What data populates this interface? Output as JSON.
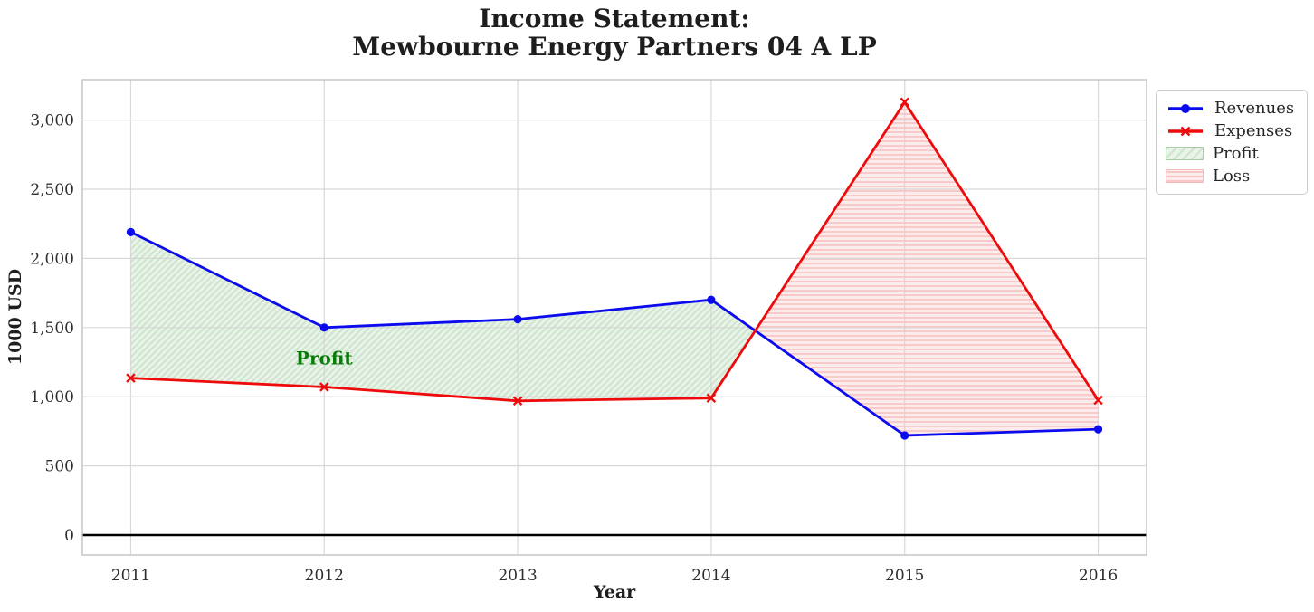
{
  "title": {
    "line1": "Income Statement:",
    "line2": "Mewbourne Energy Partners 04 A LP"
  },
  "axes": {
    "xlabel": "Year",
    "ylabel": "1000 USD"
  },
  "legend": {
    "position": "outside-top-right",
    "items": [
      {
        "label": "Revenues",
        "swatch": "blue-line-circle-marker"
      },
      {
        "label": "Expenses",
        "swatch": "red-line-x-marker"
      },
      {
        "label": "Profit",
        "swatch": "green-diagonal-hatch-patch"
      },
      {
        "label": "Loss",
        "swatch": "pink-horizontal-hatch-patch"
      }
    ]
  },
  "colors": {
    "grid": "#d2d2d2",
    "spine": "#c2c2c2",
    "tick_text": "#2e2e2e",
    "title_text": "#1e1e1e",
    "zero_line": "#000000"
  },
  "chart_data": {
    "type": "line",
    "title": "Income Statement:\nMewbourne Energy Partners 04 A LP",
    "xlabel": "Year",
    "ylabel": "1000 USD",
    "x": [
      2011,
      2012,
      2013,
      2014,
      2015,
      2016
    ],
    "series": [
      {
        "name": "Revenues",
        "values": [
          2190,
          1500,
          1560,
          1700,
          720,
          765
        ],
        "color": "#0b0bee",
        "marker": "circle",
        "line_width": 2.8
      },
      {
        "name": "Expenses",
        "values": [
          1135,
          1070,
          970,
          990,
          3130,
          975
        ],
        "color": "#ee0b0b",
        "marker": "x",
        "line_width": 2.8
      }
    ],
    "fills": [
      {
        "name": "Profit",
        "condition": "revenues > expenses",
        "hatch": "diagonal",
        "bg": "#e9f3e9",
        "stripe": "#cde5cd",
        "edge": "#a6cda6"
      },
      {
        "name": "Loss",
        "condition": "expenses > revenues",
        "hatch": "horizontal",
        "bg": "#fdecec",
        "stripe": "#f8c6c6",
        "edge": "#f5bcbc"
      }
    ],
    "annotation": {
      "text": "Profit",
      "x": 2012,
      "y": 1280,
      "color": "#077d07"
    },
    "yticks": [
      0,
      500,
      1000,
      1500,
      2000,
      2500,
      3000
    ],
    "ytick_labels": [
      "0",
      "500",
      "1,000",
      "1,500",
      "2,000",
      "2,500",
      "3,000"
    ],
    "xtick_labels": [
      "2011",
      "2012",
      "2013",
      "2014",
      "2015",
      "2016"
    ],
    "xlim": [
      2010.75,
      2016.25
    ],
    "ylim": [
      -144,
      3292
    ],
    "grid": true,
    "zero_line": true,
    "legend_position": "outside-top-right"
  }
}
